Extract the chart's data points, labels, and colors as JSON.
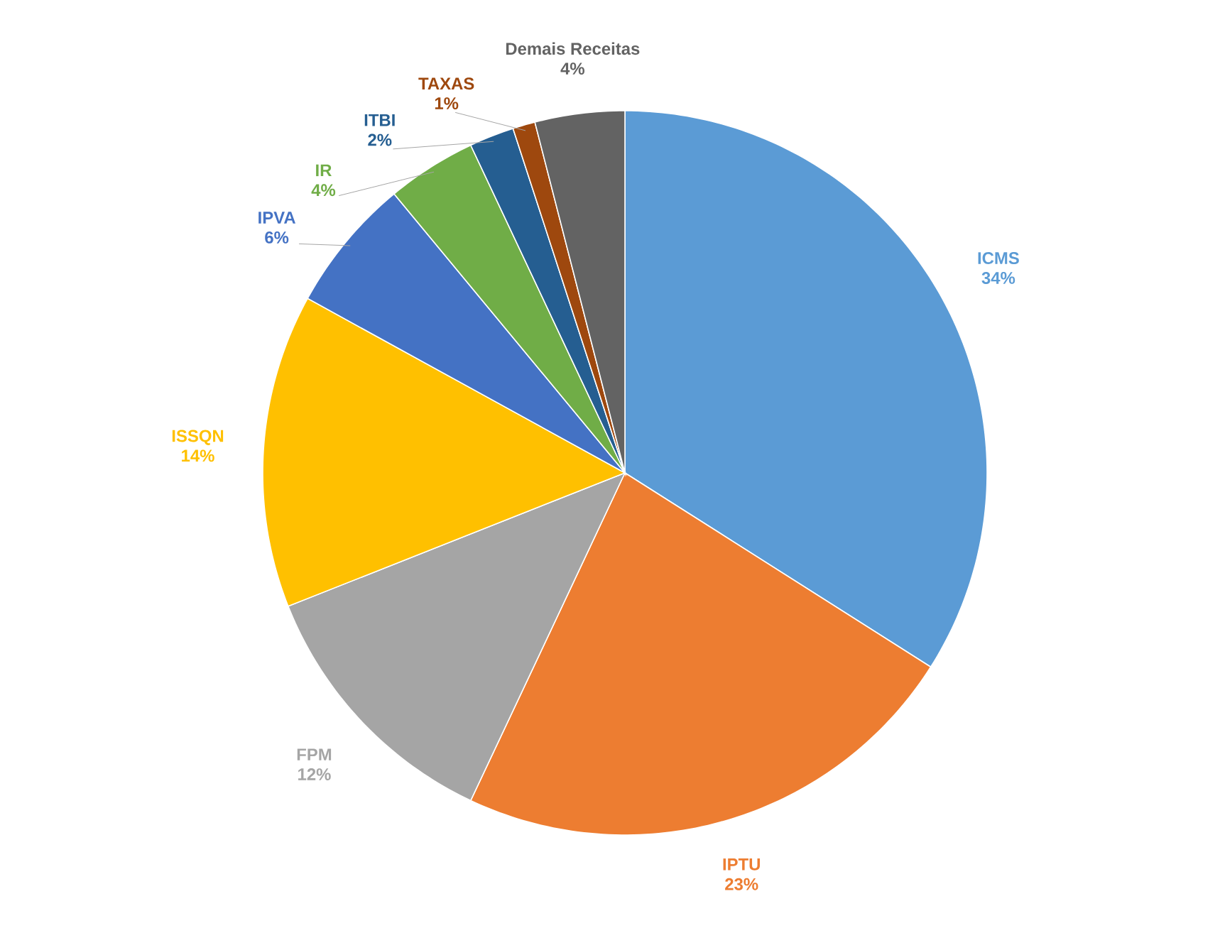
{
  "chart_data": {
    "type": "pie",
    "categories": [
      "ICMS",
      "IPTU",
      "FPM",
      "ISSQN",
      "IPVA",
      "IR",
      "ITBI",
      "TAXAS",
      "Demais Receitas"
    ],
    "values": [
      34,
      23,
      12,
      14,
      6,
      4,
      2,
      1,
      4
    ],
    "value_labels": [
      "34%",
      "23%",
      "12%",
      "14%",
      "6%",
      "4%",
      "2%",
      "1%",
      "4%"
    ],
    "colors": [
      "#5b9bd5",
      "#ed7d31",
      "#a5a5a5",
      "#ffc000",
      "#4472c4",
      "#70ad47",
      "#255e91",
      "#9e480e",
      "#636363"
    ]
  }
}
